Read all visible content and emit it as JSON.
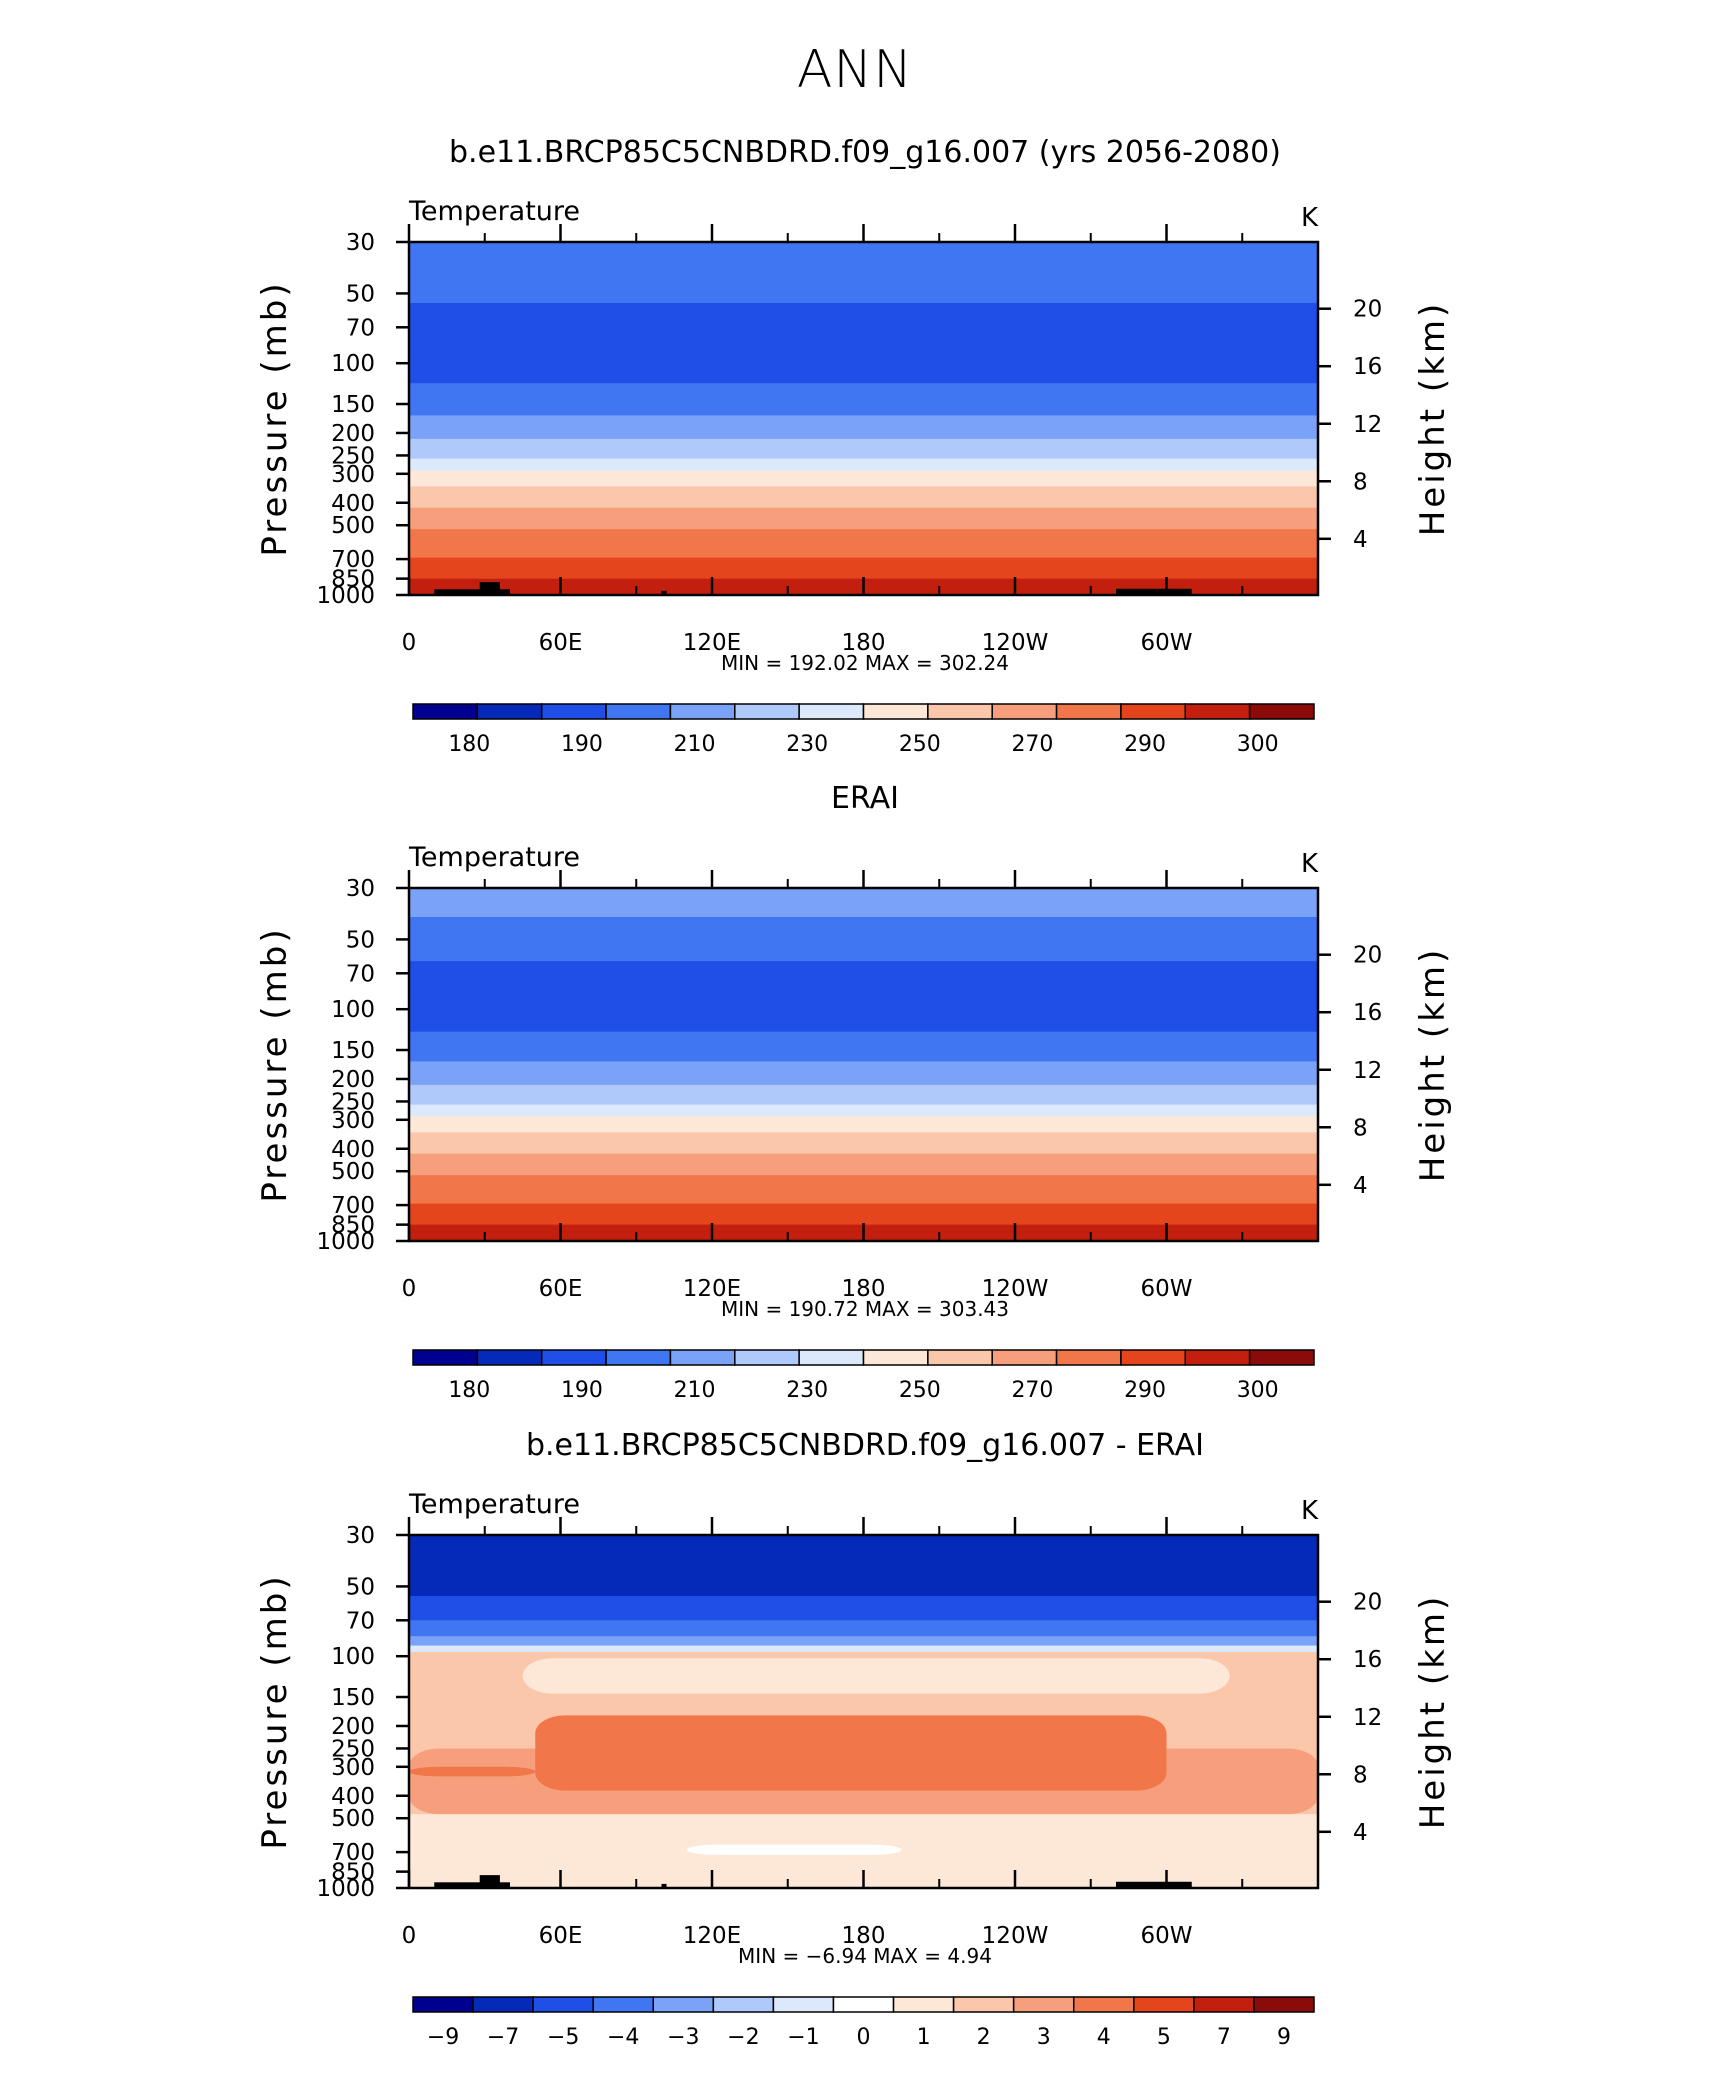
{
  "figure_title": "ANN",
  "chart_data": [
    {
      "type": "heatmap",
      "title": "b.e11.BRCP85C5CNBDRD.f09_g16.007 (yrs 2056-2080)",
      "variable": "Temperature",
      "units": "K",
      "ylabel": "Pressure  (mb)",
      "ylabel_right": "Height  (km)",
      "x_ticks": [
        "0",
        "60E",
        "120E",
        "180",
        "120W",
        "60W"
      ],
      "x_tick_lons": [
        0,
        60,
        120,
        180,
        240,
        300
      ],
      "xlim": [
        0,
        360
      ],
      "y_ticks": [
        "30",
        "50",
        "70",
        "100",
        "150",
        "200",
        "250",
        "300",
        "400",
        "500",
        "700",
        "850",
        "1000"
      ],
      "y_tick_values": [
        30,
        50,
        70,
        100,
        150,
        200,
        250,
        300,
        400,
        500,
        700,
        850,
        1000
      ],
      "ylim": [
        30,
        1000
      ],
      "y_scale": "log",
      "right_ticks": [
        "20",
        "16",
        "12",
        "8",
        "4"
      ],
      "right_tick_km": [
        20,
        16,
        12,
        8,
        4
      ],
      "stats": "MIN =  192.02   MAX =  302.24",
      "colorbar_labels": [
        "180",
        "190",
        "210",
        "230",
        "250",
        "270",
        "290",
        "300"
      ],
      "colorbar_colors": [
        "#000090",
        "#0529b8",
        "#1f4fe6",
        "#4076f2",
        "#7aa3f8",
        "#afc9fb",
        "#dce9fd",
        "#fde8d8",
        "#fbc7ab",
        "#f79f7d",
        "#f17649",
        "#e5451d",
        "#c21f0e",
        "#8b0b0b"
      ],
      "bands": [
        {
          "p_top": 30,
          "p_bot": 55,
          "color": "#4076f2"
        },
        {
          "p_top": 55,
          "p_bot": 122,
          "color": "#1f4fe6"
        },
        {
          "p_top": 122,
          "p_bot": 168,
          "color": "#4076f2"
        },
        {
          "p_top": 168,
          "p_bot": 212,
          "color": "#7aa3f8"
        },
        {
          "p_top": 212,
          "p_bot": 258,
          "color": "#afc9fb"
        },
        {
          "p_top": 258,
          "p_bot": 290,
          "color": "#dce9fd"
        },
        {
          "p_top": 290,
          "p_bot": 340,
          "color": "#fde8d8"
        },
        {
          "p_top": 340,
          "p_bot": 420,
          "color": "#fbc7ab"
        },
        {
          "p_top": 420,
          "p_bot": 520,
          "color": "#f79f7d"
        },
        {
          "p_top": 520,
          "p_bot": 690,
          "color": "#f17649"
        },
        {
          "p_top": 690,
          "p_bot": 850,
          "color": "#e5451d"
        },
        {
          "p_top": 850,
          "p_bot": 1000,
          "color": "#c21f0e"
        }
      ],
      "blobs": [],
      "terrain": [
        [
          10,
          40,
          945
        ],
        [
          28,
          36,
          880
        ],
        [
          100,
          102,
          960
        ],
        [
          280,
          310,
          940
        ]
      ]
    },
    {
      "type": "heatmap",
      "title": "ERAI",
      "variable": "Temperature",
      "units": "K",
      "ylabel": "Pressure  (mb)",
      "ylabel_right": "Height  (km)",
      "x_ticks": [
        "0",
        "60E",
        "120E",
        "180",
        "120W",
        "60W"
      ],
      "x_tick_lons": [
        0,
        60,
        120,
        180,
        240,
        300
      ],
      "xlim": [
        0,
        360
      ],
      "y_ticks": [
        "30",
        "50",
        "70",
        "100",
        "150",
        "200",
        "250",
        "300",
        "400",
        "500",
        "700",
        "850",
        "1000"
      ],
      "y_tick_values": [
        30,
        50,
        70,
        100,
        150,
        200,
        250,
        300,
        400,
        500,
        700,
        850,
        1000
      ],
      "ylim": [
        30,
        1000
      ],
      "y_scale": "log",
      "right_ticks": [
        "20",
        "16",
        "12",
        "8",
        "4"
      ],
      "right_tick_km": [
        20,
        16,
        12,
        8,
        4
      ],
      "stats": "MIN =  190.72   MAX =  303.43",
      "colorbar_labels": [
        "180",
        "190",
        "210",
        "230",
        "250",
        "270",
        "290",
        "300"
      ],
      "colorbar_colors": [
        "#000090",
        "#0529b8",
        "#1f4fe6",
        "#4076f2",
        "#7aa3f8",
        "#afc9fb",
        "#dce9fd",
        "#fde8d8",
        "#fbc7ab",
        "#f79f7d",
        "#f17649",
        "#e5451d",
        "#c21f0e",
        "#8b0b0b"
      ],
      "bands": [
        {
          "p_top": 30,
          "p_bot": 40,
          "color": "#7aa3f8"
        },
        {
          "p_top": 40,
          "p_bot": 62,
          "color": "#4076f2"
        },
        {
          "p_top": 62,
          "p_bot": 125,
          "color": "#1f4fe6"
        },
        {
          "p_top": 125,
          "p_bot": 168,
          "color": "#4076f2"
        },
        {
          "p_top": 168,
          "p_bot": 212,
          "color": "#7aa3f8"
        },
        {
          "p_top": 212,
          "p_bot": 258,
          "color": "#afc9fb"
        },
        {
          "p_top": 258,
          "p_bot": 290,
          "color": "#dce9fd"
        },
        {
          "p_top": 290,
          "p_bot": 340,
          "color": "#fde8d8"
        },
        {
          "p_top": 340,
          "p_bot": 420,
          "color": "#fbc7ab"
        },
        {
          "p_top": 420,
          "p_bot": 520,
          "color": "#f79f7d"
        },
        {
          "p_top": 520,
          "p_bot": 690,
          "color": "#f17649"
        },
        {
          "p_top": 690,
          "p_bot": 850,
          "color": "#e5451d"
        },
        {
          "p_top": 850,
          "p_bot": 1000,
          "color": "#c21f0e"
        }
      ],
      "blobs": [],
      "terrain": []
    },
    {
      "type": "heatmap",
      "title": "b.e11.BRCP85C5CNBDRD.f09_g16.007 - ERAI",
      "variable": "Temperature",
      "units": "K",
      "ylabel": "Pressure  (mb)",
      "ylabel_right": "Height  (km)",
      "x_ticks": [
        "0",
        "60E",
        "120E",
        "180",
        "120W",
        "60W"
      ],
      "x_tick_lons": [
        0,
        60,
        120,
        180,
        240,
        300
      ],
      "xlim": [
        0,
        360
      ],
      "y_ticks": [
        "30",
        "50",
        "70",
        "100",
        "150",
        "200",
        "250",
        "300",
        "400",
        "500",
        "700",
        "850",
        "1000"
      ],
      "y_tick_values": [
        30,
        50,
        70,
        100,
        150,
        200,
        250,
        300,
        400,
        500,
        700,
        850,
        1000
      ],
      "ylim": [
        30,
        1000
      ],
      "y_scale": "log",
      "right_ticks": [
        "20",
        "16",
        "12",
        "8",
        "4"
      ],
      "right_tick_km": [
        20,
        16,
        12,
        8,
        4
      ],
      "stats": "MIN =   −6.94   MAX =     4.94",
      "colorbar_labels": [
        "−9",
        "−7",
        "−5",
        "−4",
        "−3",
        "−2",
        "−1",
        "0",
        "1",
        "2",
        "3",
        "4",
        "5",
        "7",
        "9"
      ],
      "colorbar_colors": [
        "#000090",
        "#0529b8",
        "#1f4fe6",
        "#4076f2",
        "#7aa3f8",
        "#afc9fb",
        "#dce9fd",
        "#ffffff",
        "#fde8d8",
        "#fbc7ab",
        "#f79f7d",
        "#f17649",
        "#e5451d",
        "#c21f0e",
        "#8b0b0b"
      ],
      "bands": [
        {
          "p_top": 30,
          "p_bot": 55,
          "color": "#0529b8"
        },
        {
          "p_top": 55,
          "p_bot": 70,
          "color": "#1f4fe6"
        },
        {
          "p_top": 70,
          "p_bot": 82,
          "color": "#4076f2"
        },
        {
          "p_top": 82,
          "p_bot": 90,
          "color": "#7aa3f8"
        },
        {
          "p_top": 90,
          "p_bot": 96,
          "color": "#dce9fd"
        },
        {
          "p_top": 96,
          "p_bot": 480,
          "color": "#fbc7ab"
        },
        {
          "p_top": 480,
          "p_bot": 1000,
          "color": "#fde8d8"
        }
      ],
      "blobs": [
        {
          "x0": 45,
          "x1": 325,
          "p_top": 102,
          "p_bot": 145,
          "color": "#fde8d8"
        },
        {
          "x0": 0,
          "x1": 360,
          "p_top": 250,
          "p_bot": 480,
          "color": "#f79f7d"
        },
        {
          "x0": 50,
          "x1": 300,
          "p_top": 180,
          "p_bot": 380,
          "color": "#f17649"
        },
        {
          "x0": 0,
          "x1": 50,
          "p_top": 300,
          "p_bot": 330,
          "color": "#f17649"
        },
        {
          "x0": 110,
          "x1": 195,
          "p_top": 650,
          "p_bot": 720,
          "color": "#ffffff"
        }
      ],
      "terrain": [
        [
          10,
          40,
          945
        ],
        [
          28,
          36,
          880
        ],
        [
          100,
          102,
          960
        ],
        [
          280,
          310,
          940
        ]
      ]
    }
  ]
}
